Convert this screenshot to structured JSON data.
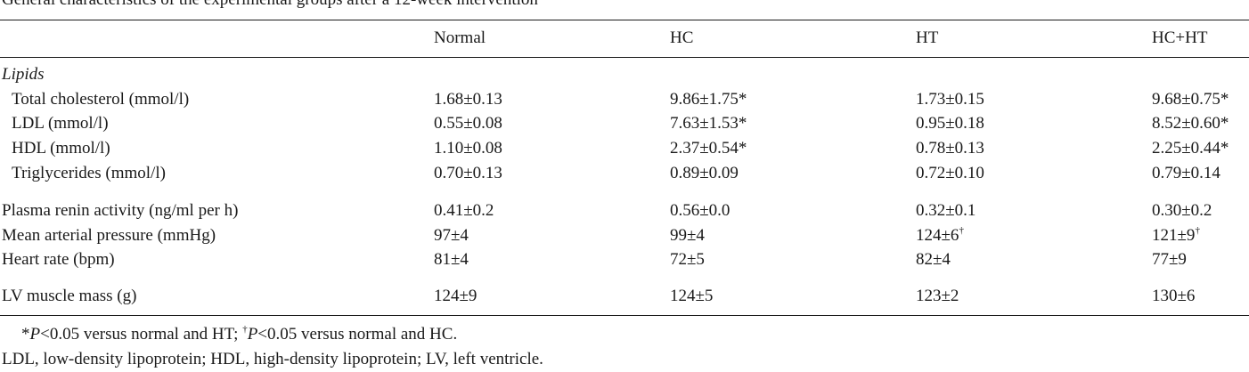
{
  "caption": "General characteristics of the experimental groups after a 12-week intervention",
  "columns": [
    "",
    "Normal",
    "HC",
    "HT",
    "HC+HT"
  ],
  "section_lipids": "Lipids",
  "rows": [
    {
      "label": "Total cholesterol (mmol/l)",
      "normal": "1.68±0.13",
      "hc": "9.86±1.75*",
      "ht": "1.73±0.15",
      "hcht": "9.68±0.75*"
    },
    {
      "label": "LDL (mmol/l)",
      "normal": "0.55±0.08",
      "hc": "7.63±1.53*",
      "ht": "0.95±0.18",
      "hcht": "8.52±0.60*"
    },
    {
      "label": "HDL (mmol/l)",
      "normal": "1.10±0.08",
      "hc": "2.37±0.54*",
      "ht": "0.78±0.13",
      "hcht": "2.25±0.44*"
    },
    {
      "label": "Triglycerides (mmol/l)",
      "normal": "0.70±0.13",
      "hc": "0.89±0.09",
      "ht": "0.72±0.10",
      "hcht": "0.79±0.14"
    },
    {
      "label": "Plasma renin activity (ng/ml per h)",
      "normal": "0.41±0.2",
      "hc": "0.56±0.0",
      "ht": "0.32±0.1",
      "hcht": "0.30±0.2"
    },
    {
      "label": "Mean arterial pressure (mmHg)",
      "normal": "97±4",
      "hc": "99±4",
      "ht": "124±6",
      "ht_sup": "†",
      "hcht": "121±9",
      "hcht_sup": "†"
    },
    {
      "label": "Heart rate (bpm)",
      "normal": "81±4",
      "hc": "72±5",
      "ht": "82±4",
      "hcht": "77±9"
    },
    {
      "label": "LV muscle mass (g)",
      "normal": "124±9",
      "hc": "124±5",
      "ht": "123±2",
      "hcht": "130±6"
    }
  ],
  "footnote1": {
    "star": "*",
    "p1": "P",
    "text1": "<0.05 versus normal and HT; ",
    "dagger": "†",
    "p2": "P",
    "text2": "<0.05 versus normal and HC."
  },
  "footnote2": "LDL, low-density lipoprotein; HDL, high-density lipoprotein; LV, left ventricle."
}
